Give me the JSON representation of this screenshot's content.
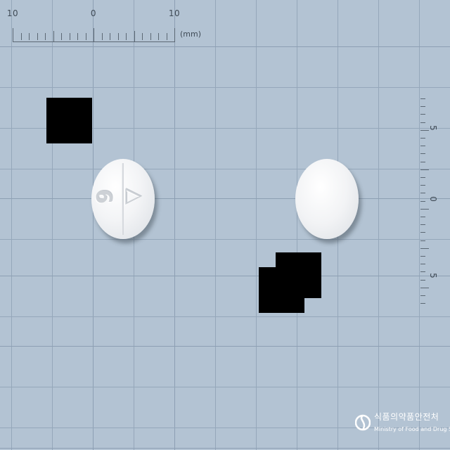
{
  "ruler_top": {
    "labels": [
      "10",
      "0",
      "10"
    ],
    "unit": "(mm)"
  },
  "ruler_right": {
    "labels": [
      "5",
      "0",
      "5"
    ]
  },
  "pills": [
    {
      "name": "pill-left",
      "imprint": "AG",
      "scored": true
    },
    {
      "name": "pill-right",
      "imprint": "",
      "scored": false
    }
  ],
  "watermark": {
    "korean": "식품의약품안전처",
    "english": "Ministry of Food and Drug Safety"
  },
  "colors": {
    "background": "#b3c3d3",
    "grid": "#95a7ba",
    "pill": "#f3f4f6",
    "redaction": "#000000"
  }
}
